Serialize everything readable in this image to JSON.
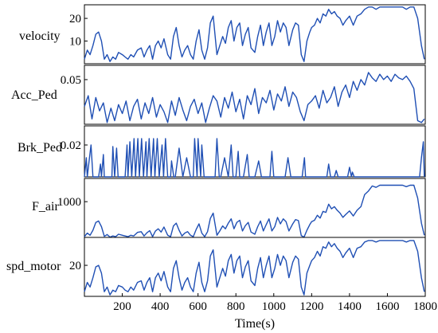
{
  "chart_data": {
    "type": "line",
    "xlabel": "Time(s)",
    "xlim": [
      0,
      1800
    ],
    "xticks": [
      "200",
      "400",
      "600",
      "800",
      "1000",
      "1200",
      "1400",
      "1600",
      "1800"
    ],
    "panels": [
      {
        "name": "velocity",
        "ylim": [
          0,
          26
        ],
        "yticks": [
          {
            "v": 10,
            "label": "10"
          },
          {
            "v": 20,
            "label": "20"
          }
        ],
        "x": [
          0,
          15,
          30,
          45,
          60,
          75,
          90,
          105,
          120,
          135,
          150,
          165,
          180,
          200,
          215,
          230,
          245,
          260,
          280,
          300,
          315,
          330,
          345,
          360,
          375,
          390,
          405,
          420,
          440,
          455,
          470,
          485,
          500,
          515,
          530,
          545,
          560,
          575,
          590,
          605,
          620,
          635,
          650,
          665,
          680,
          700,
          715,
          730,
          745,
          760,
          775,
          790,
          805,
          820,
          835,
          850,
          865,
          880,
          900,
          915,
          930,
          945,
          960,
          975,
          990,
          1005,
          1020,
          1035,
          1050,
          1065,
          1080,
          1100,
          1115,
          1130,
          1145,
          1160,
          1175,
          1190,
          1200,
          1215,
          1230,
          1245,
          1260,
          1275,
          1290,
          1305,
          1320,
          1335,
          1350,
          1365,
          1380,
          1400,
          1420,
          1440,
          1460,
          1480,
          1500,
          1520,
          1540,
          1560,
          1580,
          1600,
          1620,
          1640,
          1660,
          1680,
          1700,
          1720,
          1740,
          1760,
          1780,
          1795
        ],
        "y": [
          2,
          6,
          4,
          8,
          13,
          14,
          10,
          2,
          4,
          1,
          3,
          2,
          5,
          4,
          3,
          2,
          4,
          3,
          6,
          7,
          3,
          6,
          8,
          2,
          8,
          10,
          7,
          11,
          4,
          2,
          12,
          16,
          8,
          3,
          6,
          8,
          4,
          2,
          10,
          15,
          6,
          2,
          7,
          18,
          21,
          4,
          8,
          12,
          9,
          16,
          19,
          10,
          16,
          18,
          8,
          13,
          16,
          7,
          5,
          12,
          17,
          8,
          14,
          18,
          8,
          12,
          19,
          14,
          18,
          16,
          8,
          15,
          18,
          17,
          4,
          1,
          10,
          14,
          16,
          17,
          20,
          18,
          22,
          21,
          24,
          22,
          23,
          21,
          20,
          17,
          19,
          21,
          17,
          21,
          22,
          24,
          25,
          25,
          24,
          25,
          25,
          25,
          25,
          25,
          25,
          25,
          24,
          25,
          25,
          20,
          8,
          2
        ]
      },
      {
        "name": "Acc_Ped",
        "ylim": [
          0,
          0.066
        ],
        "yticks": [
          {
            "v": 0.05,
            "label": "0.05"
          }
        ],
        "x": [
          0,
          20,
          40,
          60,
          80,
          100,
          120,
          140,
          160,
          180,
          200,
          220,
          240,
          260,
          280,
          300,
          320,
          340,
          360,
          380,
          400,
          420,
          440,
          460,
          480,
          500,
          520,
          540,
          560,
          580,
          600,
          620,
          640,
          660,
          680,
          700,
          720,
          740,
          760,
          780,
          800,
          820,
          840,
          860,
          880,
          900,
          920,
          940,
          960,
          980,
          1000,
          1020,
          1040,
          1060,
          1080,
          1100,
          1120,
          1140,
          1160,
          1180,
          1200,
          1220,
          1240,
          1260,
          1280,
          1300,
          1320,
          1340,
          1360,
          1380,
          1400,
          1420,
          1440,
          1460,
          1480,
          1500,
          1520,
          1540,
          1560,
          1580,
          1600,
          1620,
          1640,
          1660,
          1680,
          1700,
          1720,
          1740,
          1760,
          1780,
          1795
        ],
        "y": [
          0.02,
          0.032,
          0.006,
          0.03,
          0.015,
          0.024,
          0.002,
          0.018,
          0.004,
          0.022,
          0.012,
          0.026,
          0.004,
          0.02,
          0.028,
          0.006,
          0.024,
          0.012,
          0.03,
          0.008,
          0.022,
          0.014,
          0.002,
          0.026,
          0.01,
          0.03,
          0.016,
          0.004,
          0.02,
          0.028,
          0.012,
          0.024,
          0.002,
          0.018,
          0.032,
          0.026,
          0.008,
          0.03,
          0.018,
          0.036,
          0.014,
          0.028,
          0.006,
          0.032,
          0.022,
          0.04,
          0.012,
          0.03,
          0.024,
          0.038,
          0.016,
          0.034,
          0.026,
          0.042,
          0.02,
          0.036,
          0.03,
          0.014,
          0.004,
          0.022,
          0.026,
          0.032,
          0.018,
          0.038,
          0.024,
          0.03,
          0.042,
          0.02,
          0.036,
          0.044,
          0.03,
          0.048,
          0.038,
          0.05,
          0.044,
          0.058,
          0.052,
          0.048,
          0.056,
          0.05,
          0.054,
          0.048,
          0.056,
          0.052,
          0.05,
          0.054,
          0.048,
          0.04,
          0.004,
          0.002,
          0.006
        ]
      },
      {
        "name": "Brk_Ped",
        "ylim": [
          0,
          0.032
        ],
        "yticks": [
          {
            "v": 0.02,
            "label": "0.02"
          }
        ],
        "x": [
          0,
          10,
          15,
          25,
          35,
          45,
          75,
          85,
          90,
          100,
          105,
          120,
          145,
          150,
          160,
          170,
          178,
          190,
          215,
          225,
          230,
          240,
          250,
          262,
          270,
          282,
          290,
          302,
          312,
          325,
          330,
          342,
          352,
          365,
          372,
          385,
          395,
          410,
          418,
          428,
          440,
          455,
          460,
          472,
          480,
          500,
          520,
          540,
          560,
          575,
          582,
          595,
          600,
          614,
          620,
          632,
          640,
          660,
          690,
          700,
          712,
          720,
          740,
          760,
          775,
          785,
          800,
          812,
          820,
          840,
          860,
          870,
          880,
          900,
          920,
          935,
          945,
          960,
          980,
          990,
          1000,
          1020,
          1040,
          1060,
          1075,
          1090,
          1120,
          1140,
          1150,
          1162,
          1168,
          1180,
          1200,
          1220,
          1250,
          1280,
          1290,
          1300,
          1320,
          1330,
          1340,
          1370,
          1390,
          1400,
          1410,
          1415,
          1425,
          1430,
          1450,
          1500,
          1600,
          1700,
          1770,
          1780,
          1790,
          1795
        ],
        "y": [
          0,
          0.012,
          0,
          0.01,
          0.02,
          0,
          0,
          0.008,
          0,
          0.014,
          0,
          0,
          0,
          0.019,
          0,
          0.018,
          0,
          0,
          0,
          0.02,
          0,
          0.022,
          0,
          0.024,
          0,
          0.024,
          0,
          0.024,
          0,
          0.022,
          0,
          0.024,
          0,
          0.024,
          0,
          0.024,
          0,
          0.02,
          0,
          0.024,
          0,
          0,
          0.01,
          0,
          0,
          0.018,
          0,
          0.012,
          0,
          0,
          0.024,
          0,
          0.024,
          0,
          0.02,
          0,
          0,
          0,
          0,
          0.024,
          0,
          0,
          0.012,
          0,
          0.02,
          0,
          0,
          0.016,
          0,
          0,
          0.014,
          0,
          0,
          0,
          0.01,
          0,
          0,
          0,
          0,
          0.016,
          0,
          0,
          0,
          0,
          0.012,
          0,
          0,
          0,
          0,
          0.012,
          0,
          0,
          0,
          0,
          0,
          0,
          0.008,
          0,
          0,
          0.004,
          0,
          0,
          0,
          0.006,
          0,
          0.003,
          0,
          0,
          0,
          0,
          0,
          0,
          0,
          0.012,
          0.022,
          0
        ]
      },
      {
        "name": "F_air",
        "ylim": [
          0,
          1650
        ],
        "yticks": [
          {
            "v": 1000,
            "label": "1000"
          }
        ],
        "x": [
          0,
          15,
          30,
          45,
          60,
          75,
          90,
          105,
          120,
          135,
          150,
          165,
          180,
          200,
          215,
          230,
          245,
          260,
          280,
          300,
          315,
          330,
          345,
          360,
          375,
          390,
          405,
          420,
          440,
          455,
          470,
          485,
          500,
          515,
          530,
          545,
          560,
          575,
          590,
          605,
          620,
          635,
          650,
          665,
          680,
          700,
          715,
          730,
          745,
          760,
          775,
          790,
          805,
          820,
          835,
          850,
          865,
          880,
          900,
          915,
          930,
          945,
          960,
          975,
          990,
          1005,
          1020,
          1035,
          1050,
          1065,
          1080,
          1100,
          1115,
          1130,
          1145,
          1160,
          1175,
          1190,
          1200,
          1215,
          1230,
          1245,
          1260,
          1275,
          1290,
          1305,
          1320,
          1335,
          1350,
          1365,
          1380,
          1400,
          1420,
          1440,
          1460,
          1480,
          1500,
          1520,
          1540,
          1560,
          1580,
          1600,
          1620,
          1640,
          1660,
          1680,
          1700,
          1720,
          1740,
          1760,
          1780,
          1795
        ],
        "y": [
          20,
          120,
          60,
          200,
          420,
          460,
          300,
          30,
          80,
          10,
          40,
          20,
          90,
          60,
          40,
          20,
          60,
          40,
          140,
          160,
          40,
          130,
          190,
          20,
          180,
          240,
          150,
          290,
          60,
          20,
          320,
          400,
          200,
          40,
          120,
          160,
          60,
          20,
          220,
          380,
          120,
          20,
          160,
          530,
          680,
          60,
          180,
          320,
          240,
          400,
          520,
          240,
          420,
          480,
          180,
          330,
          420,
          150,
          90,
          300,
          460,
          180,
          360,
          520,
          180,
          300,
          560,
          380,
          520,
          440,
          180,
          380,
          500,
          470,
          50,
          10,
          200,
          360,
          440,
          480,
          620,
          540,
          730,
          700,
          930,
          800,
          860,
          760,
          680,
          560,
          640,
          740,
          600,
          760,
          860,
          1200,
          1300,
          1440,
          1400,
          1460,
          1460,
          1460,
          1460,
          1460,
          1460,
          1460,
          1420,
          1460,
          1460,
          1100,
          400,
          60
        ]
      },
      {
        "name": "spd_motor",
        "ylim": [
          0,
          38
        ],
        "yticks": [
          {
            "v": 20,
            "label": "20"
          }
        ],
        "x": [
          0,
          15,
          30,
          45,
          60,
          75,
          90,
          105,
          120,
          135,
          150,
          165,
          180,
          200,
          215,
          230,
          245,
          260,
          280,
          300,
          315,
          330,
          345,
          360,
          375,
          390,
          405,
          420,
          440,
          455,
          470,
          485,
          500,
          515,
          530,
          545,
          560,
          575,
          590,
          605,
          620,
          635,
          650,
          665,
          680,
          700,
          715,
          730,
          745,
          760,
          775,
          790,
          805,
          820,
          835,
          850,
          865,
          880,
          900,
          915,
          930,
          945,
          960,
          975,
          990,
          1005,
          1020,
          1035,
          1050,
          1065,
          1080,
          1100,
          1115,
          1130,
          1145,
          1160,
          1175,
          1190,
          1200,
          1215,
          1230,
          1245,
          1260,
          1275,
          1290,
          1305,
          1320,
          1335,
          1350,
          1365,
          1380,
          1400,
          1420,
          1440,
          1460,
          1480,
          1500,
          1520,
          1540,
          1560,
          1580,
          1600,
          1620,
          1640,
          1660,
          1680,
          1700,
          1720,
          1740,
          1760,
          1780,
          1795
        ],
        "y": [
          3,
          9,
          6,
          12,
          19,
          20,
          15,
          3,
          6,
          1,
          4,
          3,
          7,
          6,
          4,
          3,
          6,
          4,
          9,
          10,
          4,
          9,
          12,
          3,
          12,
          15,
          10,
          16,
          6,
          3,
          18,
          23,
          12,
          4,
          9,
          12,
          6,
          3,
          15,
          22,
          9,
          3,
          10,
          26,
          30,
          6,
          12,
          18,
          13,
          23,
          27,
          15,
          23,
          26,
          12,
          19,
          23,
          10,
          7,
          18,
          25,
          12,
          20,
          26,
          12,
          18,
          27,
          20,
          26,
          23,
          12,
          22,
          26,
          24,
          6,
          1,
          15,
          20,
          23,
          25,
          29,
          26,
          32,
          31,
          35,
          32,
          34,
          31,
          29,
          25,
          28,
          31,
          25,
          31,
          32,
          35,
          36,
          36,
          35,
          36,
          36,
          36,
          36,
          36,
          36,
          36,
          35,
          36,
          36,
          29,
          12,
          3
        ]
      }
    ]
  }
}
